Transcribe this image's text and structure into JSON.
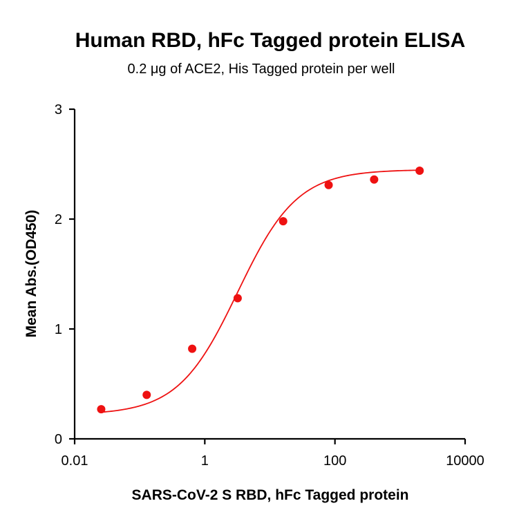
{
  "chart_data": {
    "type": "scatter",
    "title": "Human RBD, hFc Tagged protein ELISA",
    "subtitle": "0.2 μg of ACE2, His Tagged protein per well",
    "xlabel": "SARS-CoV-2 S RBD, hFc Tagged protein",
    "ylabel": "Mean Abs.(OD450)",
    "x_scale": "log",
    "xlim": [
      0.01,
      10000
    ],
    "ylim": [
      0,
      3
    ],
    "x_ticks": [
      0.01,
      1,
      100,
      10000
    ],
    "x_tick_labels": [
      "0.01",
      "1",
      "100",
      "10000"
    ],
    "y_ticks": [
      0,
      1,
      2,
      3
    ],
    "y_tick_labels": [
      "0",
      "1",
      "2",
      "3"
    ],
    "grid": false,
    "colors": {
      "series": "#ee1111",
      "axis": "#000000"
    },
    "series": [
      {
        "points": [
          {
            "x": 0.0256,
            "y": 0.27
          },
          {
            "x": 0.128,
            "y": 0.4
          },
          {
            "x": 0.64,
            "y": 0.82
          },
          {
            "x": 3.2,
            "y": 1.28
          },
          {
            "x": 16,
            "y": 1.98
          },
          {
            "x": 80,
            "y": 2.31
          },
          {
            "x": 400,
            "y": 2.36
          },
          {
            "x": 2000,
            "y": 2.44
          }
        ],
        "fit": {
          "model": "4PL",
          "bottom": 0.22,
          "top": 2.45,
          "ec50": 3.2,
          "hill": 0.95
        }
      }
    ]
  }
}
